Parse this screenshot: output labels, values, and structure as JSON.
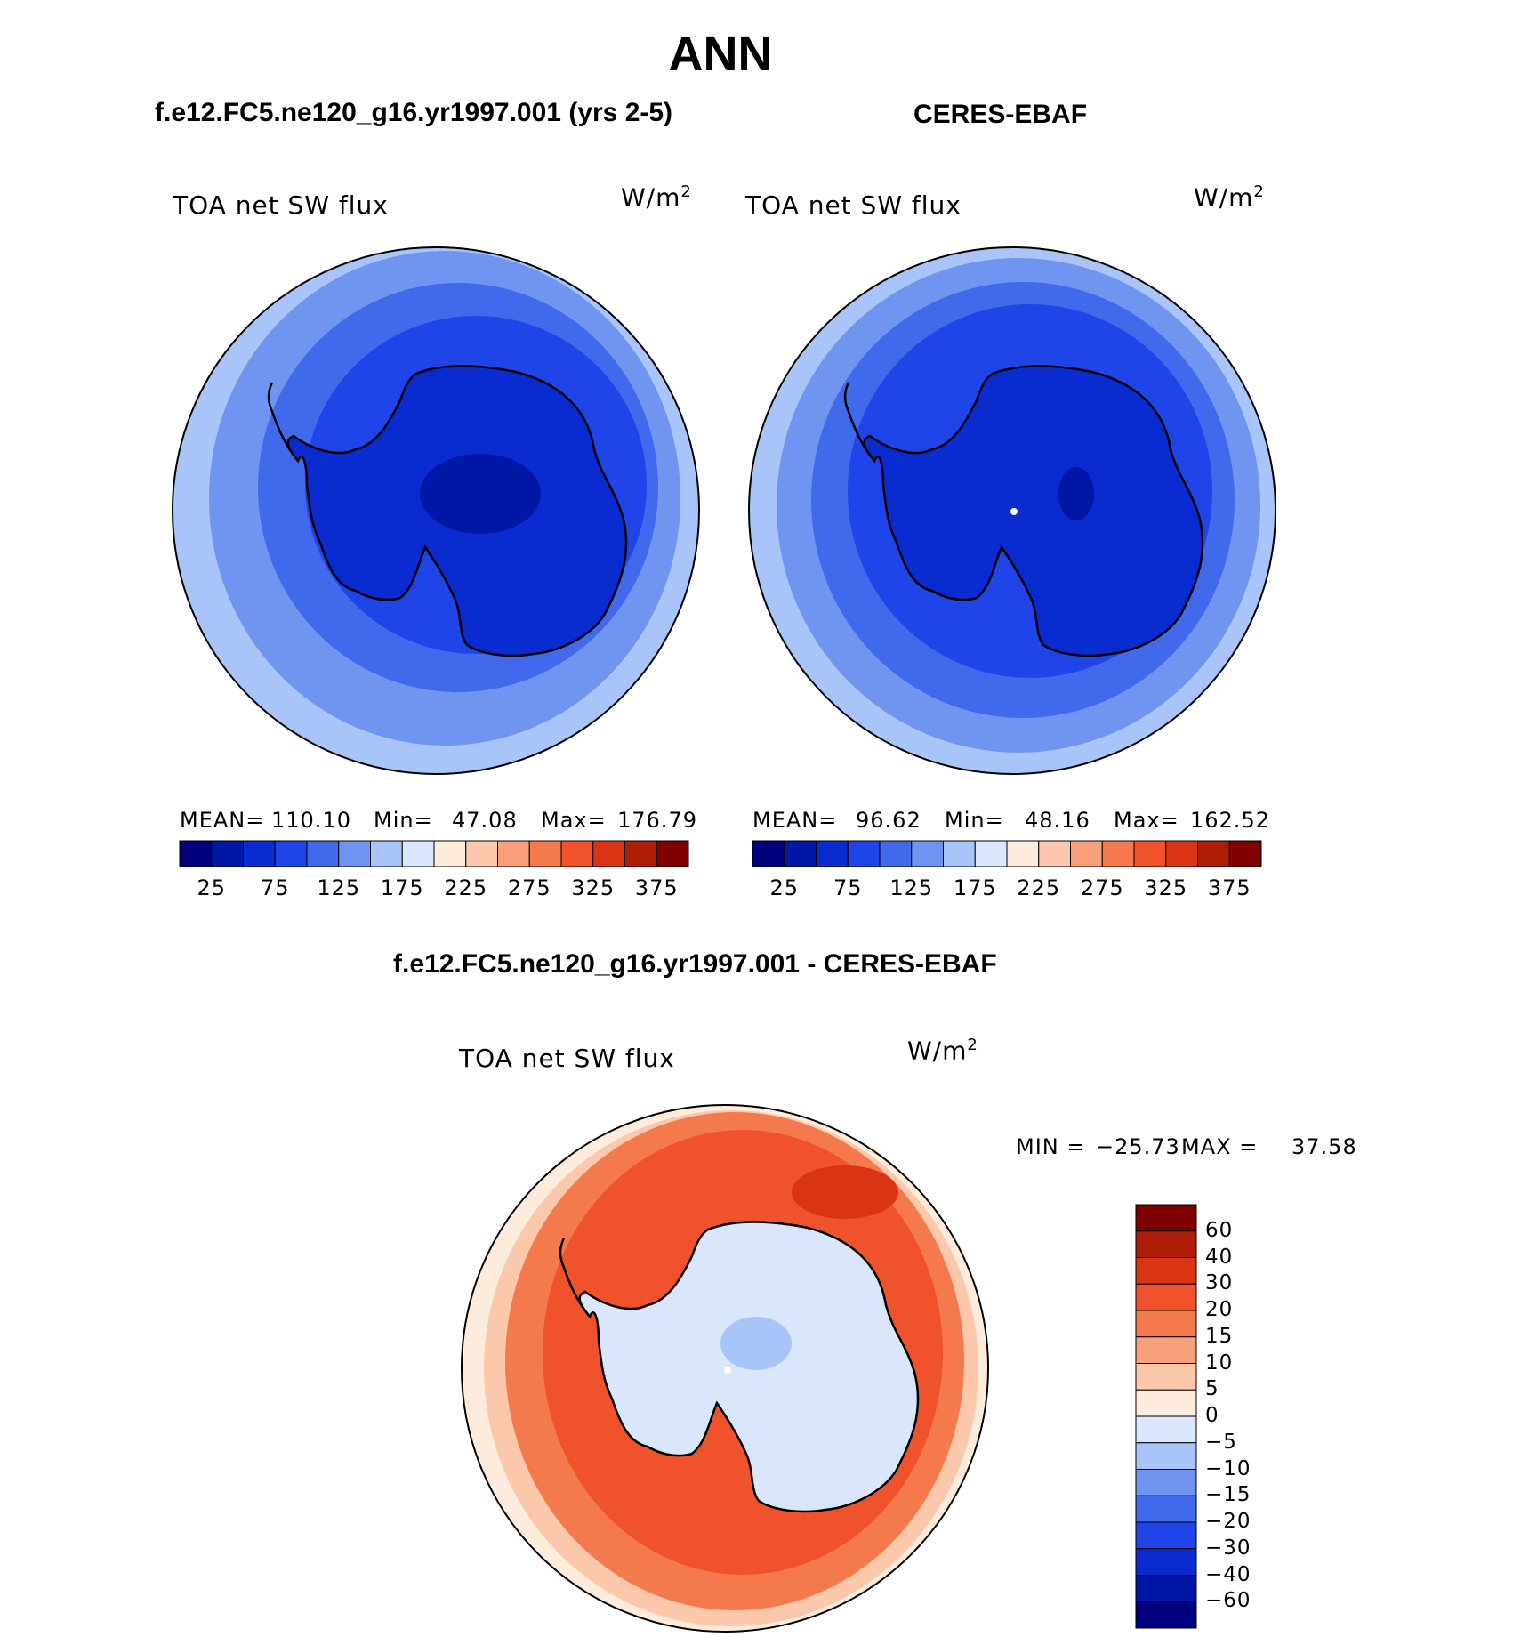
{
  "title": "ANN",
  "panel_left": {
    "title": "f.e12.FC5.ne120_g16.yr1997.001 (yrs 2-5)",
    "variable": "TOA net SW flux",
    "unit_base": "W/m",
    "unit_exp": "2",
    "stats": {
      "mean_label": "MEAN=",
      "mean": "110.10",
      "min_label": "Min=",
      "min": "47.08",
      "max_label": "Max=",
      "max": "176.79"
    }
  },
  "panel_right": {
    "title": "CERES-EBAF",
    "variable": "TOA net SW flux",
    "unit_base": "W/m",
    "unit_exp": "2",
    "stats": {
      "mean_label": "MEAN=",
      "mean": "96.62",
      "min_label": "Min=",
      "min": "48.16",
      "max_label": "Max=",
      "max": "162.52"
    }
  },
  "panel_diff": {
    "title": "f.e12.FC5.ne120_g16.yr1997.001 - CERES-EBAF",
    "variable": "TOA net SW flux",
    "unit_base": "W/m",
    "unit_exp": "2",
    "minmax": {
      "min_label": "MIN =",
      "min": "−25.73",
      "max_label": "MAX =",
      "max": "37.58"
    }
  },
  "colorbar_abs": {
    "colors": [
      "#00007f",
      "#0016a4",
      "#0a2bd0",
      "#1f44e8",
      "#4169ec",
      "#6f95f0",
      "#a9c4f8",
      "#d9e6fb",
      "#fdebdc",
      "#fbc8ac",
      "#f8a07a",
      "#f47a4e",
      "#f0522c",
      "#d93515",
      "#ad1d08",
      "#7f0000"
    ],
    "tick_labels": [
      "25",
      "75",
      "125",
      "175",
      "225",
      "275",
      "325",
      "375"
    ]
  },
  "colorbar_diff": {
    "colors": [
      "#7f0000",
      "#ad1d08",
      "#d93515",
      "#f0522c",
      "#f47a4e",
      "#f8a07a",
      "#fbc8ac",
      "#fdebdc",
      "#d9e6fb",
      "#a9c4f8",
      "#6f95f0",
      "#4169ec",
      "#1f44e8",
      "#0a2bd0",
      "#0016a4",
      "#00007f"
    ],
    "tick_labels": [
      "60",
      "40",
      "30",
      "20",
      "15",
      "10",
      "5",
      "0",
      "−5",
      "−10",
      "−15",
      "−20",
      "−30",
      "−40",
      "−60"
    ]
  },
  "map_colors": {
    "left": [
      "#a9c4f8",
      "#6f95f0",
      "#4169ec",
      "#1f44e8",
      "#0a2bd0",
      "#0016a4"
    ],
    "right": [
      "#a9c4f8",
      "#6f95f0",
      "#4169ec",
      "#1f44e8",
      "#0a2bd0",
      "#0016a4"
    ],
    "diff": [
      "#fdebdc",
      "#fbc8ac",
      "#f47a4e",
      "#f0522c",
      "#d93515",
      "#d9e6fb",
      "#a9c4f8"
    ]
  }
}
